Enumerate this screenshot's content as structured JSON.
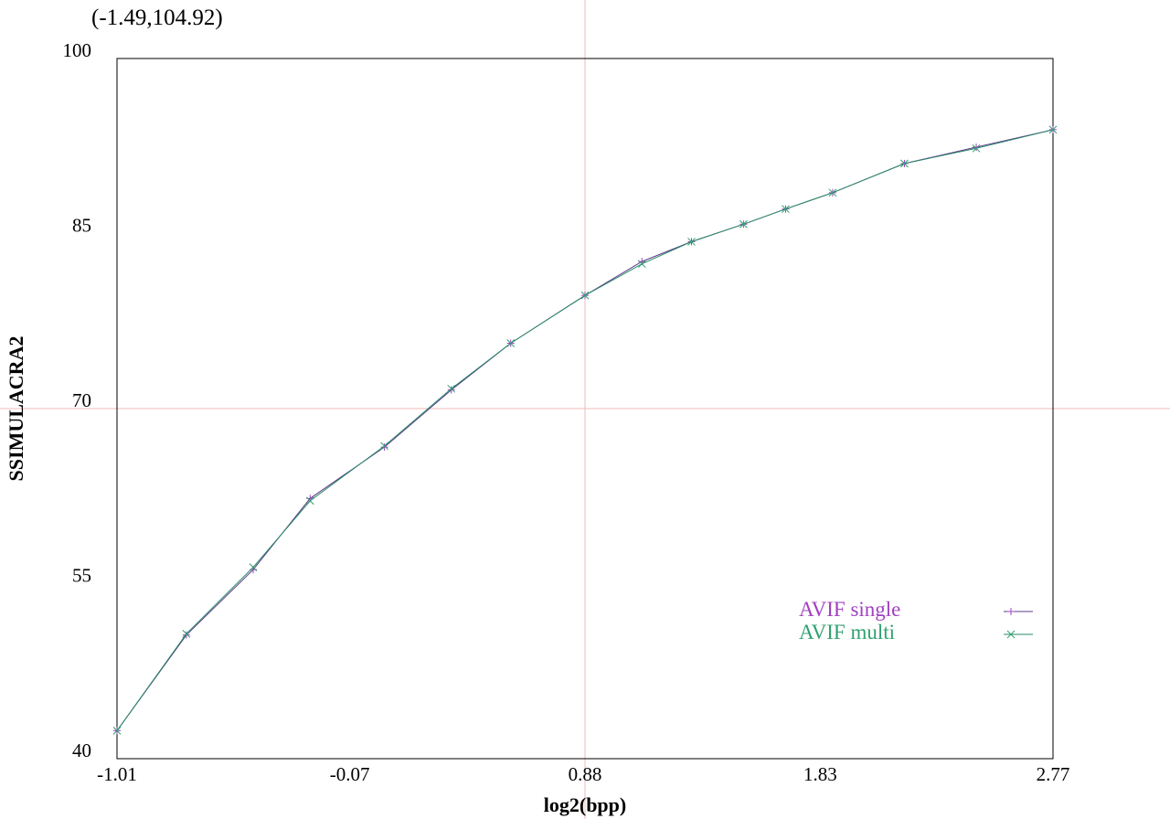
{
  "cursor_readout": "(-1.49,104.92)",
  "chart_data": {
    "type": "line",
    "title": "",
    "xlabel": "log2(bpp)",
    "ylabel": "SSIMULACRA2",
    "xlim": [
      -1.01,
      2.77
    ],
    "ylim": [
      40,
      100
    ],
    "x_ticks": [
      "-1.01",
      "-0.07",
      "0.88",
      "1.83",
      "2.77"
    ],
    "y_ticks": [
      "40",
      "55",
      "70",
      "85",
      "100"
    ],
    "grid": false,
    "legend_position": "bottom-right",
    "crosshair": {
      "x": 0.88,
      "y": 70
    },
    "colors": {
      "crosshair": "#f2b8b8",
      "frame": "#000000"
    },
    "series": [
      {
        "name": "AVIF single",
        "color": "#a040c0",
        "line_color": "#5a3a8a",
        "marker": "+",
        "x": [
          -1.01,
          -0.73,
          -0.46,
          -0.23,
          0.07,
          0.34,
          0.58,
          0.88,
          1.11,
          1.31,
          1.52,
          1.69,
          1.88,
          2.17,
          2.46,
          2.77
        ],
        "y": [
          42.4,
          50.6,
          56.2,
          62.3,
          66.7,
          71.6,
          75.6,
          79.7,
          82.6,
          84.3,
          85.8,
          87.1,
          88.5,
          91.0,
          92.4,
          93.9
        ]
      },
      {
        "name": "AVIF multi",
        "color": "#30a070",
        "line_color": "#2a8a6a",
        "marker": "x",
        "x": [
          -1.01,
          -0.73,
          -0.46,
          -0.23,
          0.07,
          0.34,
          0.58,
          0.88,
          1.11,
          1.31,
          1.52,
          1.69,
          1.88,
          2.17,
          2.46,
          2.77
        ],
        "y": [
          42.4,
          50.7,
          56.4,
          62.1,
          66.8,
          71.7,
          75.6,
          79.7,
          82.4,
          84.3,
          85.8,
          87.1,
          88.5,
          91.0,
          92.3,
          93.9
        ]
      }
    ]
  }
}
